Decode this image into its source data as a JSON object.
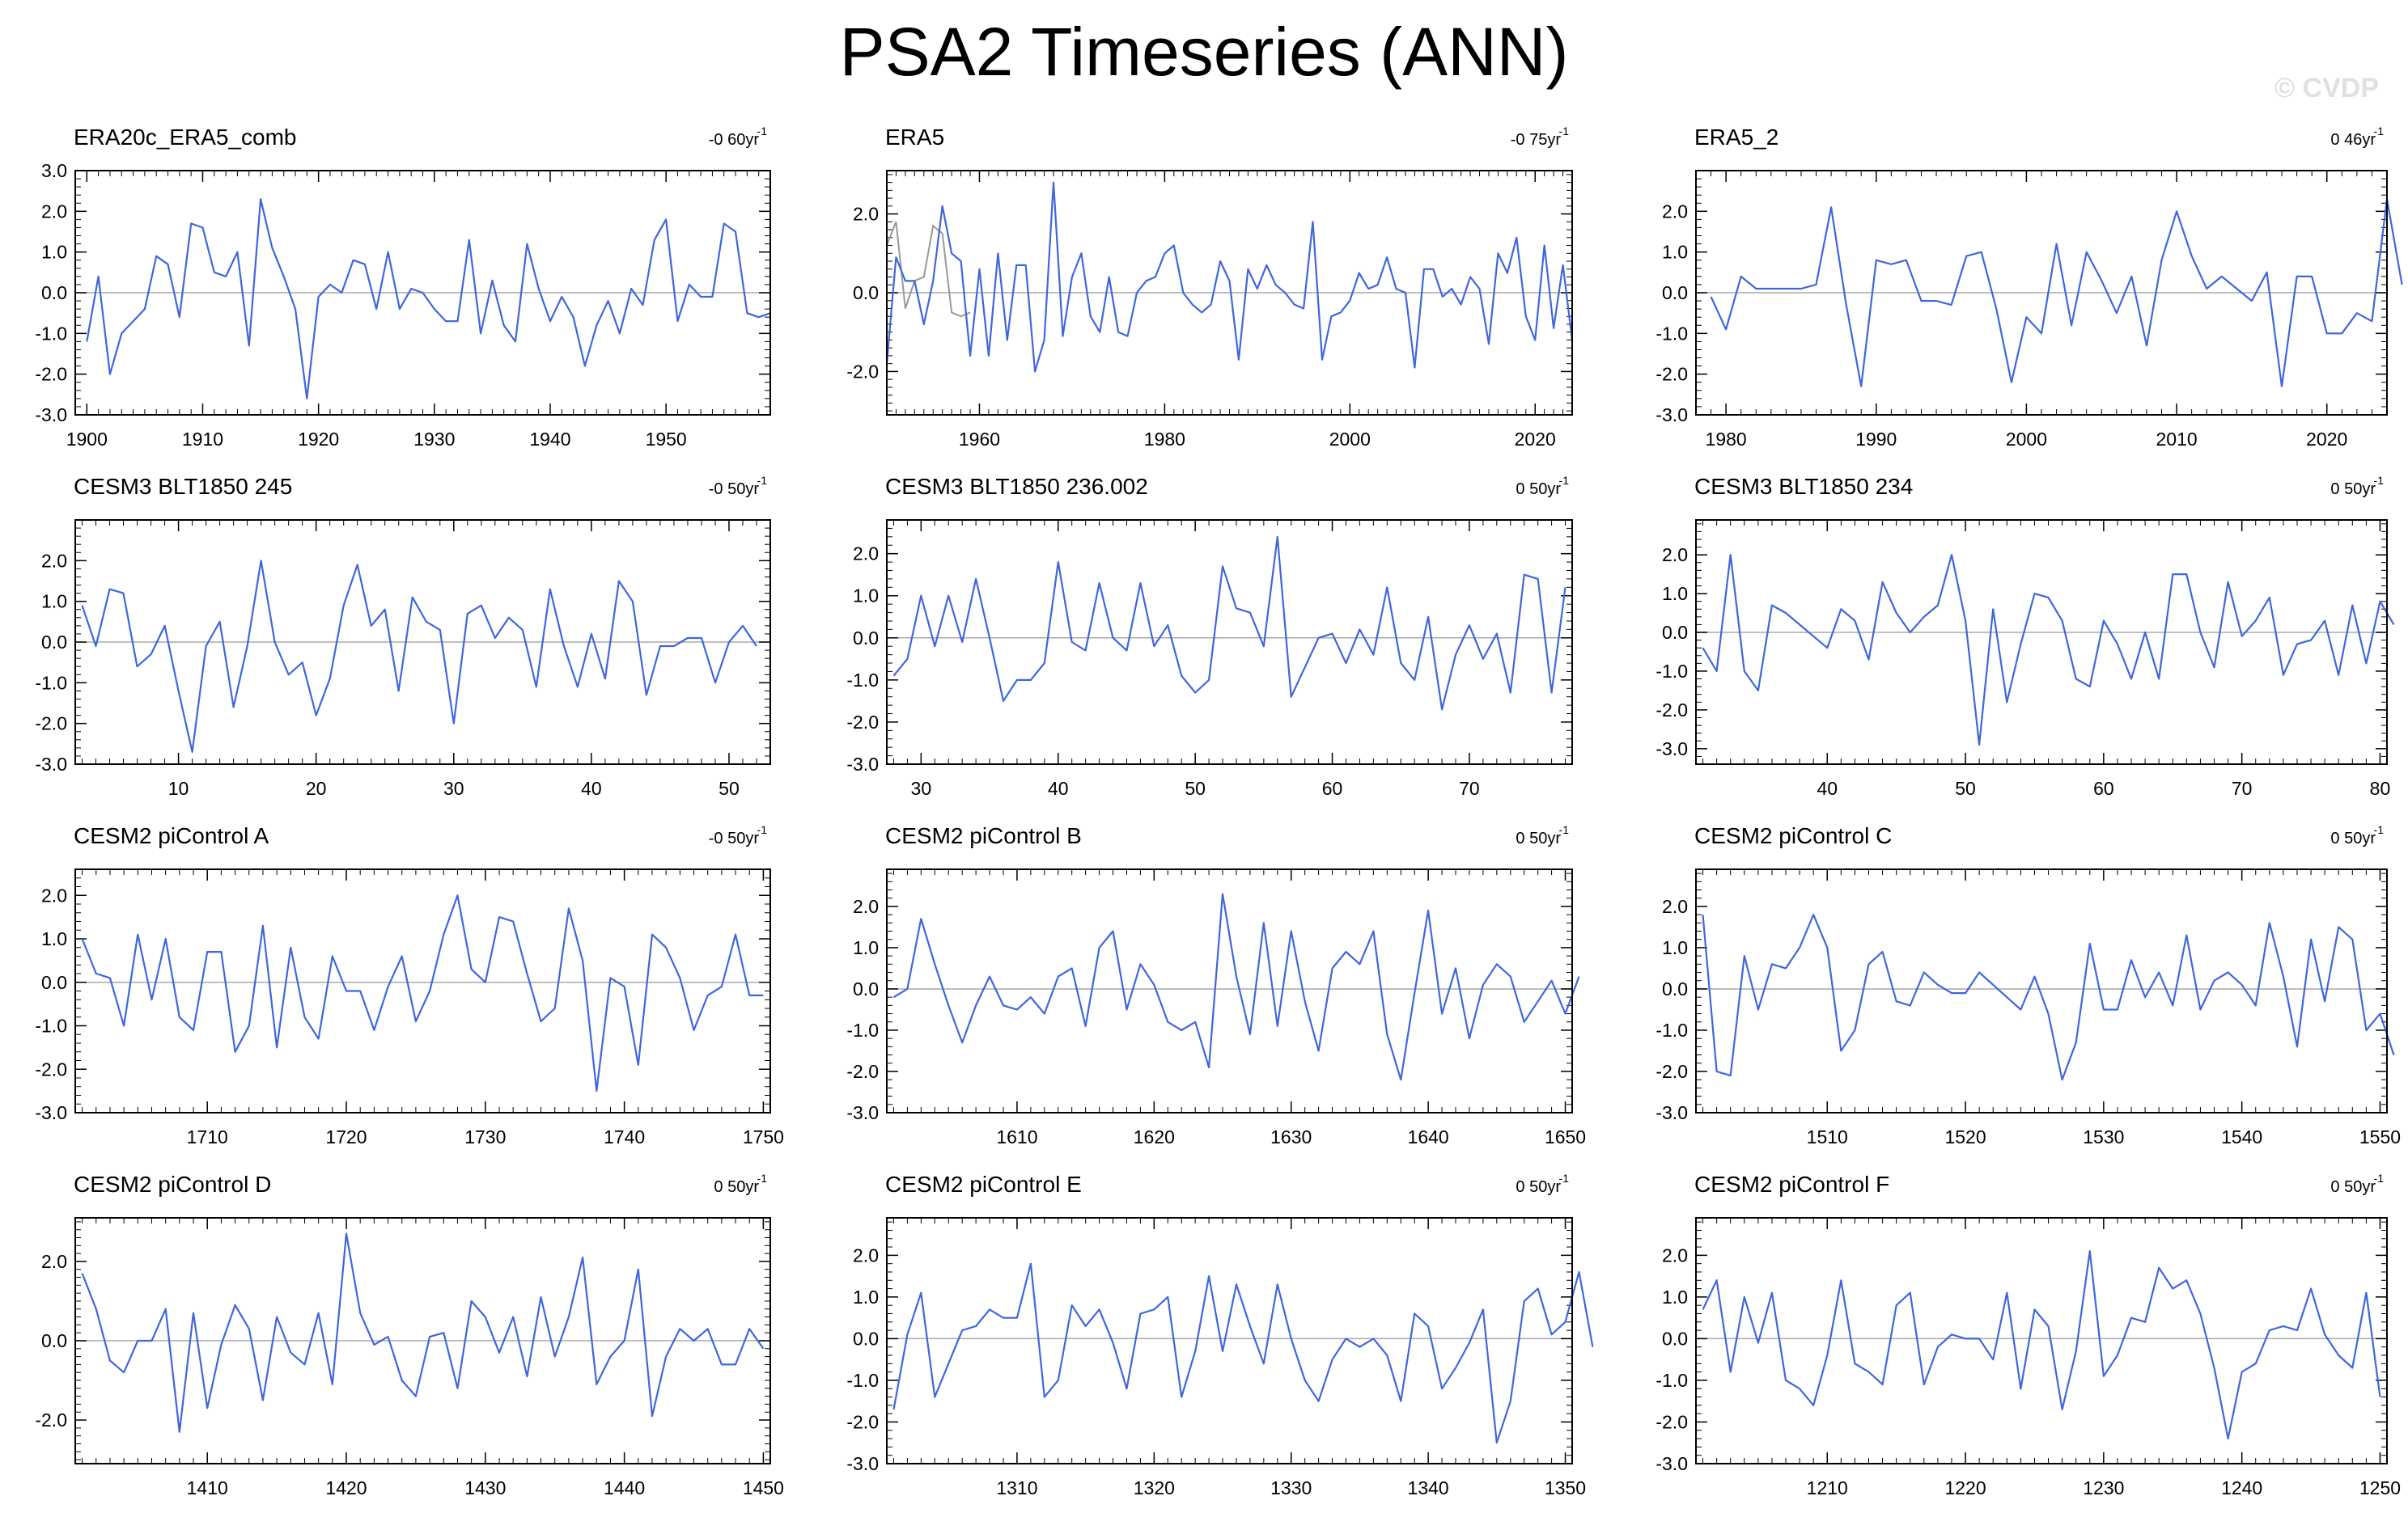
{
  "title": "PSA2 Timeseries (ANN)",
  "watermark": "© CVDP",
  "colors": {
    "series": "#3f66dc",
    "zero_line": "#aaaaaa",
    "overlay": "#999999",
    "frame": "#000000"
  },
  "chart_data": [
    {
      "type": "line",
      "title": "ERA20c_ERA5_comb",
      "trend": "-0 60yr",
      "trend_sup": "-1",
      "xlim": [
        1899,
        1959
      ],
      "ylim": [
        -3,
        3
      ],
      "yticks": [
        "3.0",
        "2.0",
        "1.0",
        "0.0",
        "-1.0",
        "-2.0",
        "-3.0"
      ],
      "xticks": [
        1900,
        1910,
        1920,
        1930,
        1940,
        1950
      ],
      "x_start": 1900,
      "values": [
        -1.2,
        0.4,
        -2.0,
        -1.0,
        -0.7,
        -0.4,
        0.9,
        0.7,
        -0.6,
        1.7,
        1.6,
        0.5,
        0.4,
        1.0,
        -1.3,
        2.3,
        1.1,
        0.4,
        -0.4,
        -2.6,
        -0.1,
        0.2,
        0.0,
        0.8,
        0.7,
        -0.4,
        1.0,
        -0.4,
        0.1,
        0.0,
        -0.4,
        -0.7,
        -0.7,
        1.3,
        -1.0,
        0.3,
        -0.8,
        -1.2,
        1.2,
        0.1,
        -0.7,
        -0.1,
        -0.6,
        -1.8,
        -0.8,
        -0.2,
        -1.0,
        0.1,
        -0.3,
        1.3,
        1.8,
        -0.7,
        0.2,
        -0.1,
        -0.1,
        1.7,
        1.5,
        -0.5,
        -0.6,
        -0.5
      ]
    },
    {
      "type": "line",
      "title": "ERA5",
      "trend": "-0 75yr",
      "trend_sup": "-1",
      "xlim": [
        1950,
        2024
      ],
      "ylim": [
        -3.1,
        3.1
      ],
      "yticks": [
        "2.0",
        "0.0",
        "-2.0"
      ],
      "xticks": [
        1960,
        1980,
        2000,
        2020
      ],
      "x_start": 1950,
      "values": [
        -1.8,
        0.9,
        0.3,
        0.3,
        -0.8,
        0.3,
        2.2,
        1.0,
        0.8,
        -1.6,
        0.6,
        -1.6,
        1.0,
        -1.2,
        0.7,
        0.7,
        -2.0,
        -1.2,
        2.8,
        -1.1,
        0.4,
        1.0,
        -0.6,
        -1.0,
        0.4,
        -1.0,
        -1.1,
        0.0,
        0.3,
        0.4,
        1.0,
        1.2,
        0.0,
        -0.3,
        -0.5,
        -0.3,
        0.8,
        0.3,
        -1.7,
        0.6,
        0.1,
        0.7,
        0.2,
        0.0,
        -0.3,
        -0.4,
        1.8,
        -1.7,
        -0.6,
        -0.5,
        -0.2,
        0.5,
        0.1,
        0.2,
        0.9,
        0.1,
        0.0,
        -1.9,
        0.6,
        0.6,
        -0.1,
        0.1,
        -0.3,
        0.4,
        0.1,
        -1.3,
        1.0,
        0.5,
        1.4,
        -0.6,
        -1.2,
        1.2,
        -0.9,
        0.7,
        -1.2
      ],
      "overlay_start": 1950,
      "overlay_values": [
        1.2,
        1.8,
        -0.4,
        0.3,
        0.4,
        1.7,
        1.5,
        -0.5,
        -0.6,
        -0.5
      ]
    },
    {
      "type": "line",
      "title": "ERA5_2",
      "trend": "0 46yr",
      "trend_sup": "-1",
      "xlim": [
        1978,
        2024
      ],
      "ylim": [
        -3,
        3
      ],
      "yticks": [
        "2.0",
        "1.0",
        "0.0",
        "-1.0",
        "-2.0",
        "-3.0"
      ],
      "xticks": [
        1980,
        1990,
        2000,
        2010,
        2020
      ],
      "x_start": 1979,
      "values": [
        -0.1,
        -0.9,
        0.4,
        0.1,
        0.1,
        0.1,
        0.1,
        0.2,
        2.1,
        -0.3,
        -2.3,
        0.8,
        0.7,
        0.8,
        -0.2,
        -0.2,
        -0.3,
        0.9,
        1.0,
        -0.4,
        -2.2,
        -0.6,
        -1.0,
        1.2,
        -0.8,
        1.0,
        0.3,
        -0.5,
        0.4,
        -1.3,
        0.8,
        2.0,
        0.9,
        0.1,
        0.4,
        0.1,
        -0.2,
        0.5,
        -2.3,
        0.4,
        0.4,
        -1.0,
        -1.0,
        -0.5,
        -0.7,
        2.3,
        0.2
      ]
    },
    {
      "type": "line",
      "title": "CESM3 BLT1850 245",
      "trend": "-0 50yr",
      "trend_sup": "-1",
      "xlim": [
        2.5,
        53
      ],
      "ylim": [
        -3,
        3
      ],
      "yticks": [
        "2.0",
        "1.0",
        "0.0",
        "-1.0",
        "-2.0",
        "-3.0"
      ],
      "xticks": [
        10,
        20,
        30,
        40,
        50
      ],
      "x_start": 3,
      "values": [
        0.9,
        -0.1,
        1.3,
        1.2,
        -0.6,
        -0.3,
        0.4,
        -1.2,
        -2.7,
        -0.1,
        0.5,
        -1.6,
        -0.1,
        2.0,
        0.0,
        -0.8,
        -0.5,
        -1.8,
        -0.9,
        0.9,
        1.9,
        0.4,
        0.8,
        -1.2,
        1.1,
        0.5,
        0.3,
        -2.0,
        0.7,
        0.9,
        0.1,
        0.6,
        0.3,
        -1.1,
        1.3,
        -0.1,
        -1.1,
        0.2,
        -0.9,
        1.5,
        1.0,
        -1.3,
        -0.1,
        -0.1,
        0.1,
        0.1,
        -1.0,
        0.0,
        0.4,
        -0.1
      ]
    },
    {
      "type": "line",
      "title": "CESM3 BLT1850 236.002",
      "trend": "0 50yr",
      "trend_sup": "-1",
      "xlim": [
        27.5,
        77.5
      ],
      "ylim": [
        -3,
        2.8
      ],
      "yticks": [
        "2.0",
        "1.0",
        "0.0",
        "-1.0",
        "-2.0",
        "-3.0"
      ],
      "xticks": [
        30,
        40,
        50,
        60,
        70
      ],
      "x_start": 28,
      "values": [
        -0.9,
        -0.5,
        1.0,
        -0.2,
        1.0,
        -0.1,
        1.4,
        0.0,
        -1.5,
        -1.0,
        -1.0,
        -0.6,
        1.8,
        -0.1,
        -0.3,
        1.3,
        0.0,
        -0.3,
        1.3,
        -0.2,
        0.3,
        -0.9,
        -1.3,
        -1.0,
        1.7,
        0.7,
        0.6,
        -0.2,
        2.4,
        -1.4,
        -0.7,
        0.0,
        0.1,
        -0.6,
        0.2,
        -0.4,
        1.2,
        -0.6,
        -1.0,
        0.5,
        -1.7,
        -0.4,
        0.3,
        -0.5,
        0.1,
        -1.3,
        1.5,
        1.4,
        -1.3,
        1.2
      ]
    },
    {
      "type": "line",
      "title": "CESM3 BLT1850 234",
      "trend": "0 50yr",
      "trend_sup": "-1",
      "xlim": [
        30.5,
        80.5
      ],
      "ylim": [
        -3.4,
        2.9
      ],
      "yticks": [
        "2.0",
        "1.0",
        "0.0",
        "-1.0",
        "-2.0",
        "-3.0"
      ],
      "xticks": [
        40,
        50,
        60,
        70,
        80
      ],
      "x_start": 31,
      "values": [
        -0.4,
        -1.0,
        2.0,
        -1.0,
        -1.5,
        0.7,
        0.5,
        0.2,
        -0.1,
        -0.4,
        0.6,
        0.3,
        -0.7,
        1.3,
        0.5,
        0.0,
        0.4,
        0.7,
        2.0,
        0.3,
        -2.9,
        0.6,
        -1.8,
        -0.3,
        1.0,
        0.9,
        0.3,
        -1.2,
        -1.4,
        0.3,
        -0.3,
        -1.2,
        0.0,
        -1.2,
        1.5,
        1.5,
        0.0,
        -0.9,
        1.3,
        -0.1,
        0.3,
        0.9,
        -1.1,
        -0.3,
        -0.2,
        0.3,
        -1.1,
        0.7,
        -0.8,
        0.8,
        0.2
      ]
    },
    {
      "type": "line",
      "title": "CESM2 piControl A",
      "trend": "-0 50yr",
      "trend_sup": "-1",
      "xlim": [
        1700.5,
        1750.5
      ],
      "ylim": [
        -3,
        2.6
      ],
      "yticks": [
        "2.0",
        "1.0",
        "0.0",
        "-1.0",
        "-2.0",
        "-3.0"
      ],
      "xticks": [
        1710,
        1720,
        1730,
        1740,
        1750
      ],
      "x_start": 1701,
      "values": [
        1.0,
        0.2,
        0.1,
        -1.0,
        1.1,
        -0.4,
        1.0,
        -0.8,
        -1.1,
        0.7,
        0.7,
        -1.6,
        -1.0,
        1.3,
        -1.5,
        0.8,
        -0.8,
        -1.3,
        0.6,
        -0.2,
        -0.2,
        -1.1,
        -0.1,
        0.6,
        -0.9,
        -0.2,
        1.1,
        2.0,
        0.3,
        0.0,
        1.5,
        1.4,
        0.2,
        -0.9,
        -0.6,
        1.7,
        0.5,
        -2.5,
        0.1,
        -0.1,
        -1.9,
        1.1,
        0.8,
        0.1,
        -1.1,
        -0.3,
        -0.1,
        1.1,
        -0.3,
        -0.3
      ]
    },
    {
      "type": "line",
      "title": "CESM2 piControl B",
      "trend": "0 50yr",
      "trend_sup": "-1",
      "xlim": [
        1600.5,
        1650.5
      ],
      "ylim": [
        -3,
        2.9
      ],
      "yticks": [
        "2.0",
        "1.0",
        "0.0",
        "-1.0",
        "-2.0",
        "-3.0"
      ],
      "xticks": [
        1610,
        1620,
        1630,
        1640,
        1650
      ],
      "x_start": 1601,
      "values": [
        -0.2,
        0.0,
        1.7,
        0.6,
        -0.4,
        -1.3,
        -0.4,
        0.3,
        -0.4,
        -0.5,
        -0.2,
        -0.6,
        0.3,
        0.5,
        -0.9,
        1.0,
        1.4,
        -0.5,
        0.6,
        0.1,
        -0.8,
        -1.0,
        -0.8,
        -1.9,
        2.3,
        0.3,
        -1.1,
        1.6,
        -0.9,
        1.4,
        -0.3,
        -1.5,
        0.5,
        0.9,
        0.6,
        1.4,
        -1.1,
        -2.2,
        -0.1,
        1.9,
        -0.6,
        0.5,
        -1.2,
        0.1,
        0.6,
        0.3,
        -0.8,
        -0.3,
        0.2,
        -0.6,
        0.3
      ]
    },
    {
      "type": "line",
      "title": "CESM2 piControl C",
      "trend": "0 50yr",
      "trend_sup": "-1",
      "xlim": [
        1500.5,
        1550.5
      ],
      "ylim": [
        -3,
        2.9
      ],
      "yticks": [
        "2.0",
        "1.0",
        "0.0",
        "-1.0",
        "-2.0",
        "-3.0"
      ],
      "xticks": [
        1510,
        1520,
        1530,
        1540,
        1550
      ],
      "x_start": 1501,
      "values": [
        1.8,
        -2.0,
        -2.1,
        0.8,
        -0.5,
        0.6,
        0.5,
        1.0,
        1.8,
        1.0,
        -1.5,
        -1.0,
        0.6,
        0.9,
        -0.3,
        -0.4,
        0.4,
        0.1,
        -0.1,
        -0.1,
        0.4,
        0.1,
        -0.2,
        -0.5,
        0.3,
        -0.6,
        -2.2,
        -1.3,
        1.1,
        -0.5,
        -0.5,
        0.7,
        -0.2,
        0.4,
        -0.4,
        1.3,
        -0.5,
        0.2,
        0.4,
        0.1,
        -0.4,
        1.6,
        0.3,
        -1.4,
        1.2,
        -0.3,
        1.5,
        1.2,
        -1.0,
        -0.6,
        -1.6
      ]
    },
    {
      "type": "line",
      "title": "CESM2 piControl D",
      "trend": "0 50yr",
      "trend_sup": "-1",
      "xlim": [
        1400.5,
        1450.5
      ],
      "ylim": [
        -3.1,
        3.1
      ],
      "yticks": [
        "2.0",
        "0.0",
        "-2.0"
      ],
      "xticks": [
        1410,
        1420,
        1430,
        1440,
        1450
      ],
      "x_start": 1401,
      "values": [
        1.7,
        0.8,
        -0.5,
        -0.8,
        0.0,
        0.0,
        0.8,
        -2.3,
        0.7,
        -1.7,
        -0.1,
        0.9,
        0.3,
        -1.5,
        0.6,
        -0.3,
        -0.6,
        0.7,
        -1.1,
        2.7,
        0.7,
        -0.1,
        0.1,
        -1.0,
        -1.4,
        0.1,
        0.2,
        -1.2,
        1.0,
        0.6,
        -0.3,
        0.6,
        -0.9,
        1.1,
        -0.4,
        0.6,
        2.1,
        -1.1,
        -0.4,
        0.0,
        1.8,
        -1.9,
        -0.4,
        0.3,
        0.0,
        0.3,
        -0.6,
        -0.6,
        0.3,
        -0.2
      ]
    },
    {
      "type": "line",
      "title": "CESM2 piControl E",
      "trend": "0 50yr",
      "trend_sup": "-1",
      "xlim": [
        1300.5,
        1350.5
      ],
      "ylim": [
        -3,
        2.9
      ],
      "yticks": [
        "2.0",
        "1.0",
        "0.0",
        "-1.0",
        "-2.0",
        "-3.0"
      ],
      "xticks": [
        1310,
        1320,
        1330,
        1340,
        1350
      ],
      "x_start": 1301,
      "values": [
        -1.7,
        0.1,
        1.1,
        -1.4,
        -0.6,
        0.2,
        0.3,
        0.7,
        0.5,
        0.5,
        1.8,
        -1.4,
        -1.0,
        0.8,
        0.3,
        0.7,
        -0.1,
        -1.2,
        0.6,
        0.7,
        1.0,
        -1.4,
        -0.3,
        1.5,
        -0.3,
        1.3,
        0.3,
        -0.6,
        1.3,
        0.0,
        -1.0,
        -1.5,
        -0.5,
        0.0,
        -0.2,
        0.0,
        -0.4,
        -1.5,
        0.6,
        0.3,
        -1.2,
        -0.7,
        -0.1,
        0.7,
        -2.5,
        -1.5,
        0.9,
        1.2,
        0.1,
        0.4,
        1.6,
        -0.2
      ]
    },
    {
      "type": "line",
      "title": "CESM2 piControl F",
      "trend": "0 50yr",
      "trend_sup": "-1",
      "xlim": [
        1200.5,
        1250.5
      ],
      "ylim": [
        -3,
        2.9
      ],
      "yticks": [
        "2.0",
        "1.0",
        "0.0",
        "-1.0",
        "-2.0",
        "-3.0"
      ],
      "xticks": [
        1210,
        1220,
        1230,
        1240,
        1250
      ],
      "x_start": 1201,
      "values": [
        0.7,
        1.4,
        -0.8,
        1.0,
        -0.1,
        1.1,
        -1.0,
        -1.2,
        -1.6,
        -0.4,
        1.4,
        -0.6,
        -0.8,
        -1.1,
        0.8,
        1.1,
        -1.1,
        -0.2,
        0.1,
        0.0,
        0.0,
        -0.5,
        1.1,
        -1.2,
        0.7,
        0.3,
        -1.7,
        -0.3,
        2.1,
        -0.9,
        -0.4,
        0.5,
        0.4,
        1.7,
        1.2,
        1.4,
        0.6,
        -0.7,
        -2.4,
        -0.8,
        -0.6,
        0.2,
        0.3,
        0.2,
        1.2,
        0.1,
        -0.4,
        -0.7,
        1.1,
        -1.4
      ]
    }
  ]
}
